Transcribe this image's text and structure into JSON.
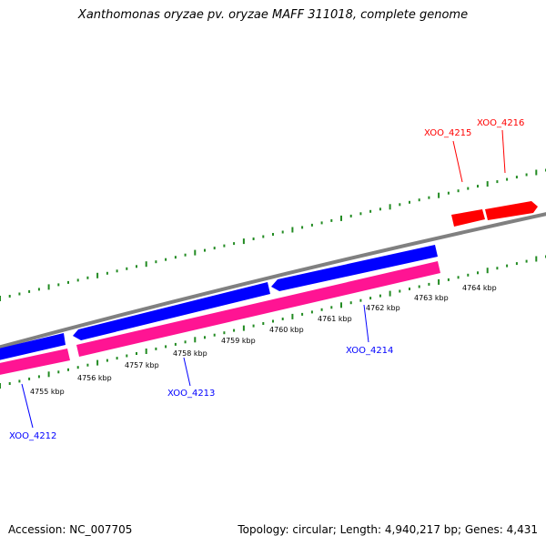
{
  "header": {
    "title": "Xanthomonas oryzae pv. oryzae MAFF 311018, complete genome"
  },
  "footer": {
    "accession": "Accession: NC_007705",
    "summary": "Topology: circular; Length: 4,940,217 bp; Genes: 4,431"
  },
  "colors": {
    "backbone": "#808080",
    "forward_cds": "#ff0000",
    "reverse_cds": "#0000ff",
    "reverse_gene": "#ff1493",
    "ticks": "#228b22"
  },
  "ruler": {
    "labels": [
      "4755 kbp",
      "4756 kbp",
      "4757 kbp",
      "4758 kbp",
      "4759 kbp",
      "4760 kbp",
      "4761 kbp",
      "4762 kbp",
      "4763 kbp",
      "4764 kbp"
    ]
  },
  "genes": [
    {
      "id": "XOO_4212",
      "strand": "reverse",
      "color": "#0000ff"
    },
    {
      "id": "XOO_4213",
      "strand": "reverse",
      "color": "#0000ff"
    },
    {
      "id": "XOO_4214",
      "strand": "reverse",
      "color": "#0000ff"
    },
    {
      "id": "XOO_4215",
      "strand": "forward",
      "color": "#ff0000"
    },
    {
      "id": "XOO_4216",
      "strand": "forward",
      "color": "#ff0000"
    }
  ]
}
